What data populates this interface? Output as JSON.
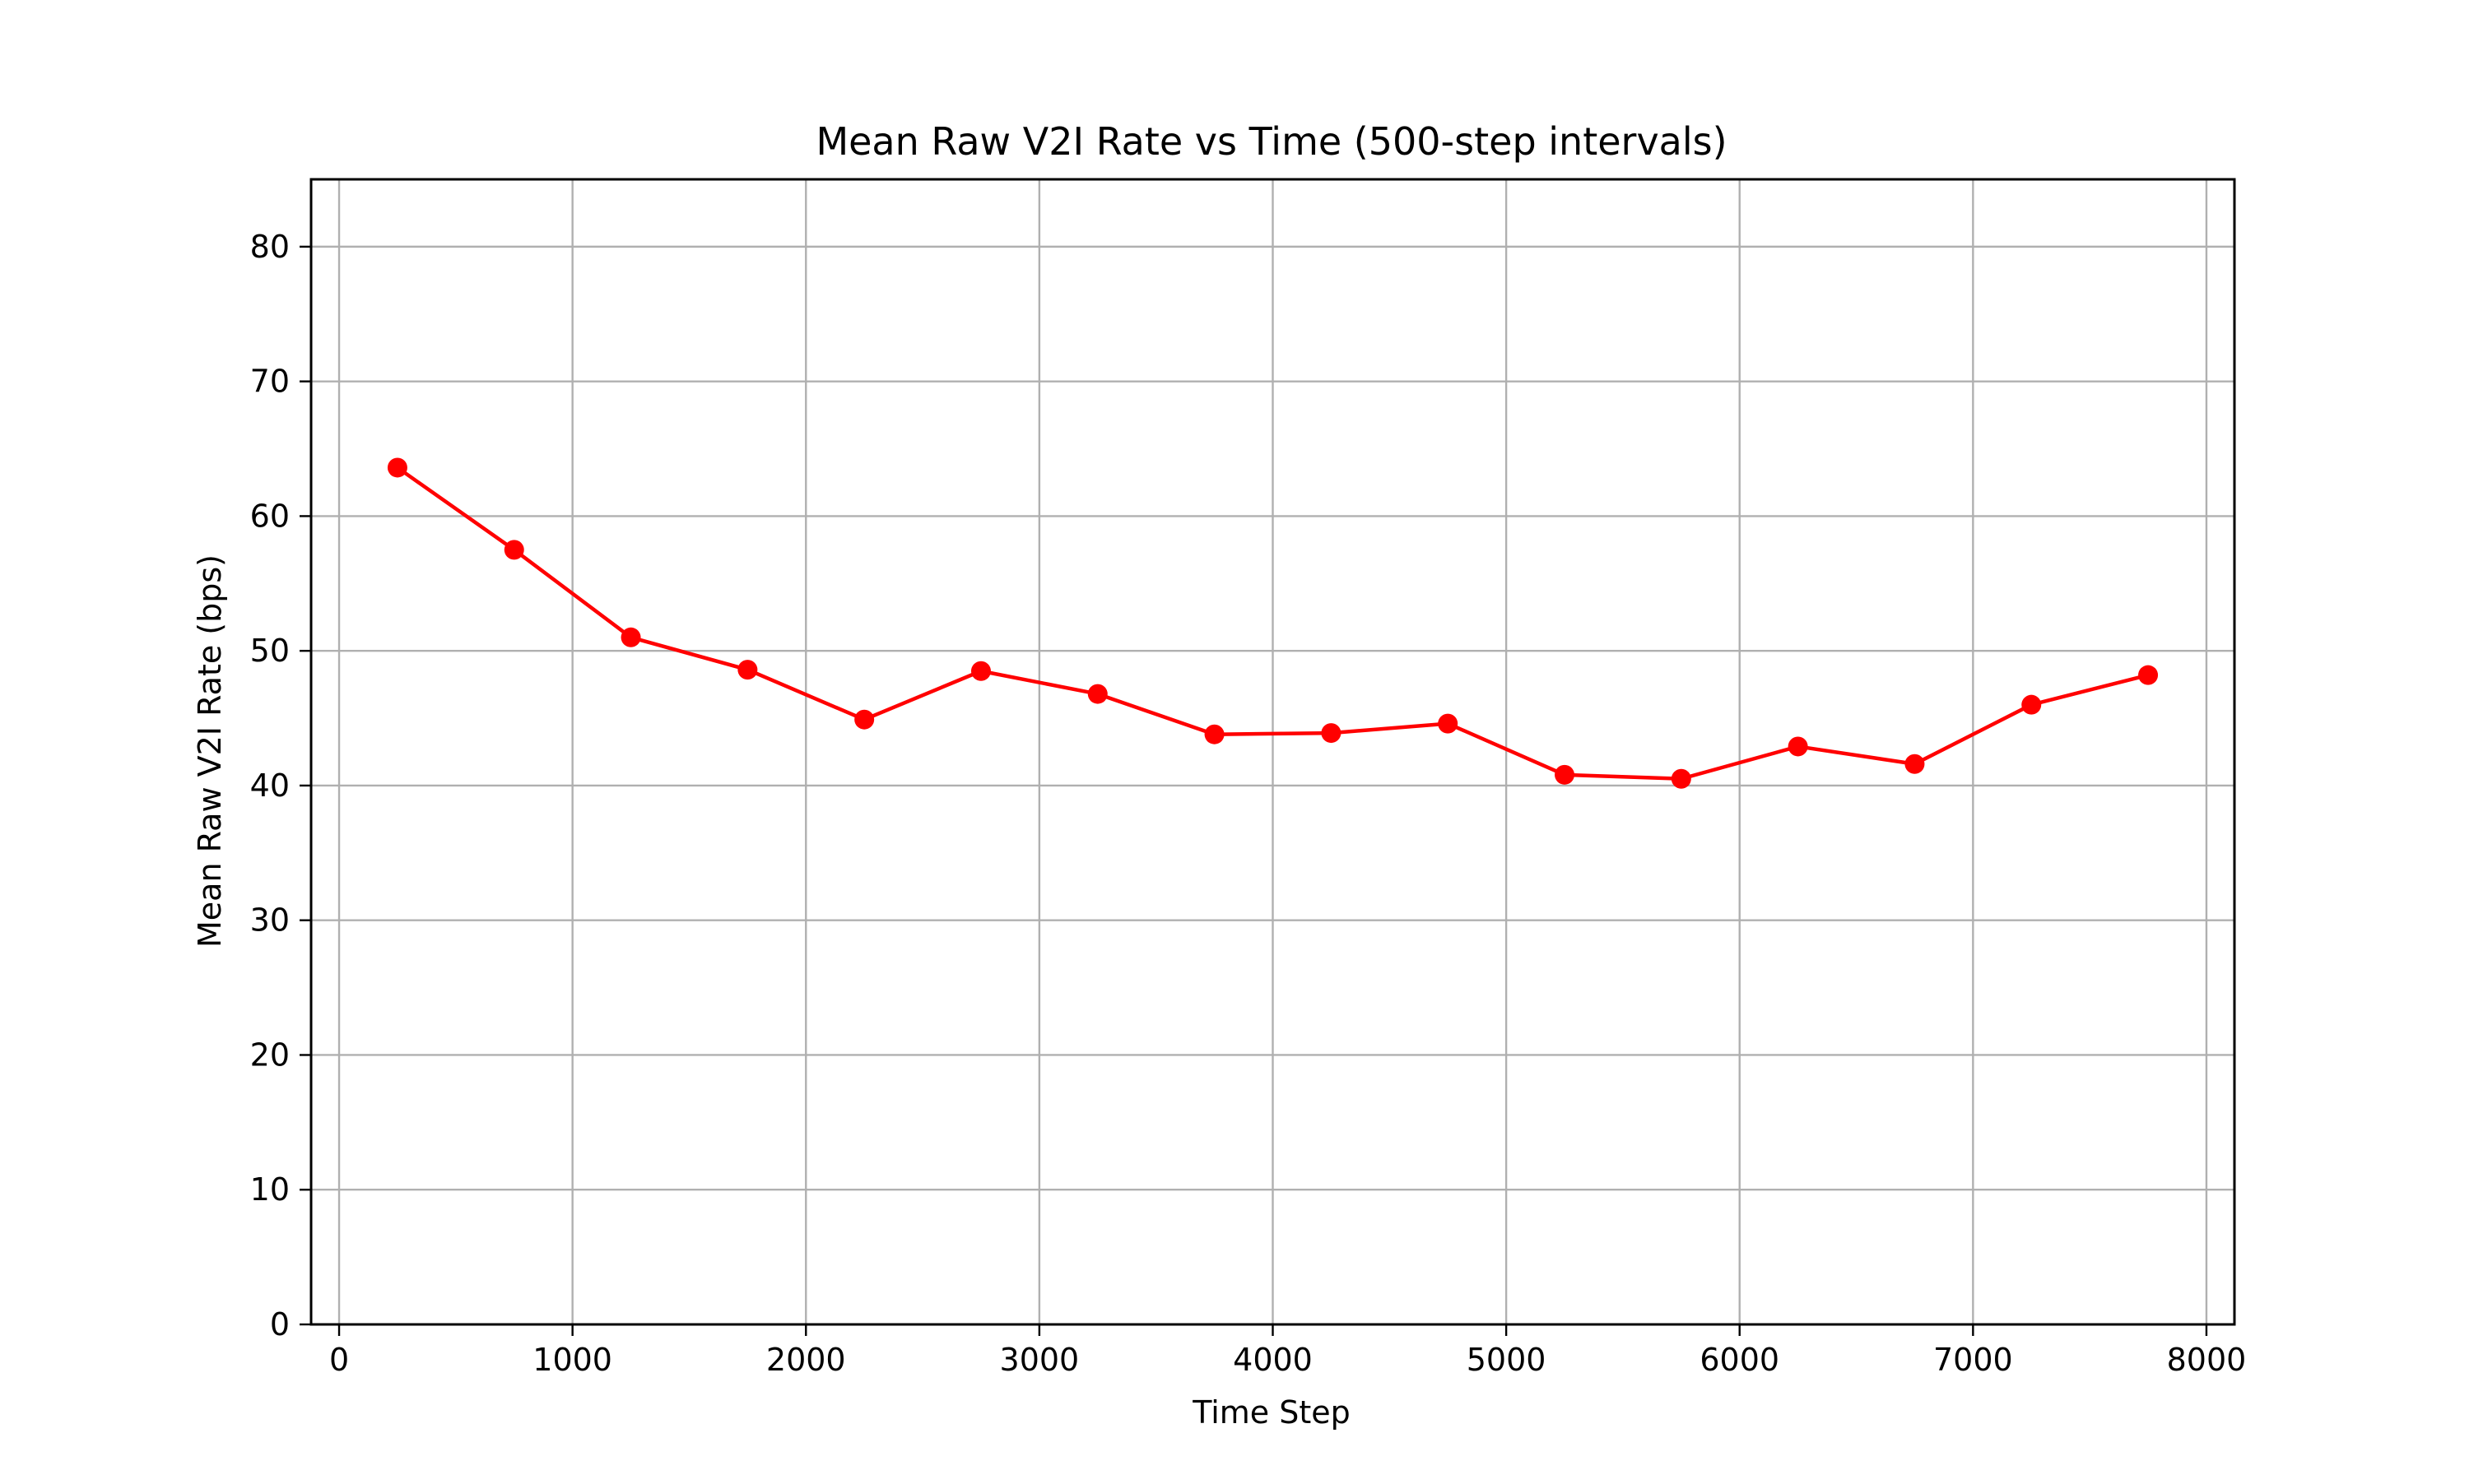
{
  "chart_data": {
    "type": "line",
    "title": "Mean Raw V2I Rate vs Time (500-step intervals)",
    "xlabel": "Time Step",
    "ylabel": "Mean Raw V2I Rate (bps)",
    "xlim": [
      -120,
      8120
    ],
    "ylim": [
      0,
      85
    ],
    "x_ticks": [
      0,
      1000,
      2000,
      3000,
      4000,
      5000,
      6000,
      7000,
      8000
    ],
    "y_ticks": [
      0,
      10,
      20,
      30,
      40,
      50,
      60,
      70,
      80
    ],
    "grid": true,
    "legend": false,
    "series": [
      {
        "color": "#ff0000",
        "marker": "circle",
        "x": [
          250,
          750,
          1250,
          1750,
          2250,
          2750,
          3250,
          3750,
          4250,
          4750,
          5250,
          5750,
          6250,
          6750,
          7250,
          7750
        ],
        "y": [
          63.6,
          57.5,
          51.0,
          48.6,
          44.9,
          48.5,
          46.8,
          43.8,
          43.9,
          44.6,
          40.8,
          40.5,
          42.9,
          41.6,
          46.0,
          48.2
        ]
      }
    ],
    "colors": {
      "line": "#ff0000",
      "grid": "#b0b0b0",
      "axes": "#000000"
    }
  }
}
